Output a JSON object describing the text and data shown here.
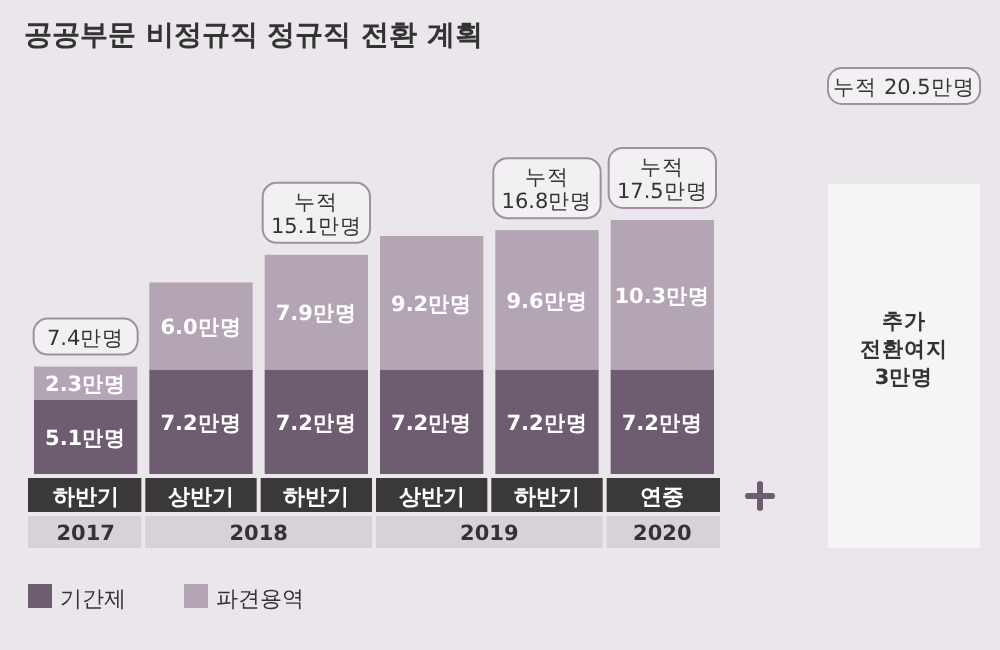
{
  "chart_data": {
    "type": "bar",
    "stacked": true,
    "title": "공공부문 비정규직 정규직 전환 계획",
    "categories": [
      "하반기",
      "상반기",
      "하반기",
      "상반기",
      "하반기",
      "연중"
    ],
    "series": [
      {
        "name": "기간제",
        "color": "#6e5d70",
        "values": [
          5.1,
          7.2,
          7.2,
          7.2,
          7.2,
          7.2
        ],
        "value_labels": [
          "5.1만명",
          "7.2만명",
          "7.2만명",
          "7.2만명",
          "7.2만명",
          "7.2만명"
        ]
      },
      {
        "name": "파견용역",
        "color": "#b4a5b5",
        "values": [
          2.3,
          6.0,
          7.9,
          9.2,
          9.6,
          10.3
        ],
        "value_labels": [
          "2.3만명",
          "6.0만명",
          "7.9만명",
          "9.2만명",
          "9.6만명",
          "10.3만명"
        ]
      }
    ],
    "totals": [
      "7.4만명",
      null,
      "누적 15.1만명",
      null,
      "누적 16.8만명",
      "누적 17.5만명"
    ],
    "annotations": [
      "2017",
      "2018",
      "2019",
      "2020",
      "누적 20.5만명",
      "추가 전환여지 3만명"
    ],
    "legend": "bottom left"
  }
}
